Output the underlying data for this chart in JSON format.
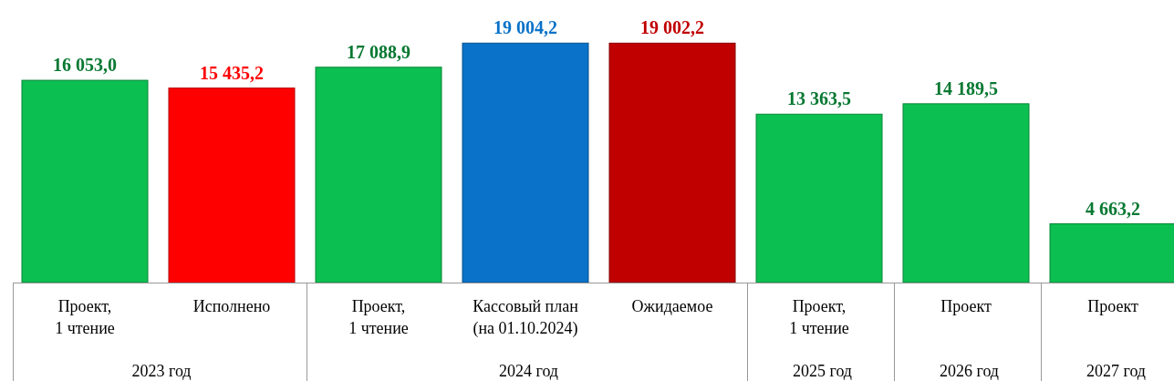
{
  "chart_data": {
    "type": "bar",
    "categories": [
      "Проект,\n1 чтение",
      "Исполнено",
      "Проект,\n1 чтение",
      "Кассовый план\n(на 01.10.2024)",
      "Ожидаемое",
      "Проект,\n1 чтение",
      "Проект",
      "Проект"
    ],
    "values": [
      16053.0,
      15435.2,
      17088.9,
      19004.2,
      19002.2,
      13363.5,
      14189.5,
      4663.2
    ],
    "colors": [
      "#0bbf50",
      "#ff0000",
      "#0bbf50",
      "#0a72c8",
      "#c00000",
      "#0bbf50",
      "#0bbf50",
      "#0bbf50"
    ],
    "value_labels": [
      "16 053,0",
      "15 435,2",
      "17 088,9",
      "19 004,2",
      "19 002,2",
      "13 363,5",
      "14 189,5",
      "4 663,2"
    ],
    "annotations": [
      "2023 год",
      "2024 год",
      "2025 год",
      "2026 год",
      "2027 год"
    ]
  }
}
